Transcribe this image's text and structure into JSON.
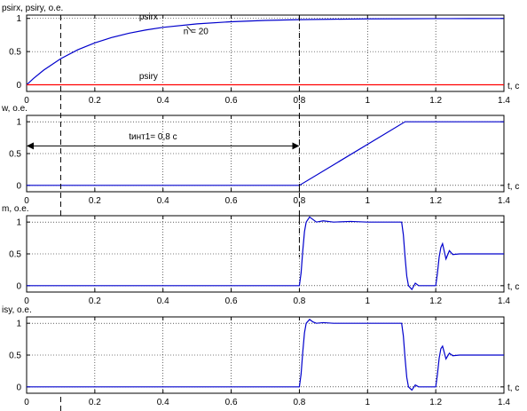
{
  "chart_data": [
    {
      "type": "line",
      "ylabel": "psirx, psiry, o.e.",
      "xlabel": "t, c",
      "xlim": [
        0,
        1.4
      ],
      "ylim": [
        -0.1,
        1.05
      ],
      "xticks": [
        0,
        0.2,
        0.4,
        0.6,
        0.8,
        1,
        1.2,
        1.4
      ],
      "xtick_labels": [
        "0",
        "0.2",
        "0.4",
        "0.6",
        "0.8",
        "1",
        "1.2",
        "1.4"
      ],
      "yticks": [
        0,
        0.5,
        1
      ],
      "ytick_labels": [
        "0",
        "0.5",
        "1"
      ],
      "grid": true,
      "series": [
        {
          "name": "psirx",
          "color": "#0000cc",
          "x": [
            0,
            0.02,
            0.05,
            0.1,
            0.15,
            0.2,
            0.25,
            0.3,
            0.35,
            0.4,
            0.5,
            0.6,
            0.7,
            0.8,
            0.9,
            1.0,
            1.1,
            1.2,
            1.3,
            1.4
          ],
          "y": [
            0,
            0.095,
            0.221,
            0.393,
            0.528,
            0.632,
            0.713,
            0.777,
            0.826,
            0.865,
            0.918,
            0.95,
            0.97,
            0.981,
            0.988,
            0.993,
            0.995,
            0.997,
            0.998,
            0.999
          ]
        },
        {
          "name": "psiry",
          "color": "#ff0000",
          "x": [
            0,
            1.4
          ],
          "y": [
            0,
            0
          ]
        }
      ],
      "annotations": [
        {
          "text": "psirx",
          "x": 0.33,
          "y": 0.98
        },
        {
          "text": "n = 20",
          "x": 0.46,
          "y": 0.76
        },
        {
          "text": "psiry",
          "x": 0.33,
          "y": 0.09
        }
      ]
    },
    {
      "type": "line",
      "ylabel": "w, o.e.",
      "xlabel": "t, c",
      "xlim": [
        0,
        1.4
      ],
      "ylim": [
        -0.1,
        1.1
      ],
      "xticks": [
        0,
        0.2,
        0.4,
        0.6,
        0.8,
        1,
        1.2,
        1.4
      ],
      "xtick_labels": [
        "0",
        "0.2",
        "0.4",
        "0.6",
        "0.8",
        "1",
        "1.2",
        "1.4"
      ],
      "yticks": [
        0,
        0.5,
        1
      ],
      "ytick_labels": [
        "0",
        "0.5",
        "1"
      ],
      "grid": true,
      "series": [
        {
          "name": "w",
          "color": "#0000cc",
          "x": [
            0,
            0.8,
            1.11,
            1.4
          ],
          "y": [
            0,
            0,
            1,
            1
          ]
        }
      ],
      "annotations": [
        {
          "text": "tинт1= 0,8 с",
          "x": 0.3,
          "y": 0.72
        }
      ]
    },
    {
      "type": "line",
      "ylabel": "m, o.e.",
      "xlabel": "t, c",
      "xlim": [
        0,
        1.4
      ],
      "ylim": [
        -0.1,
        1.1
      ],
      "xticks": [
        0,
        0.2,
        0.4,
        0.6,
        0.8,
        1,
        1.2,
        1.4
      ],
      "xtick_labels": [
        "0",
        "0.2",
        "0.4",
        "0.6",
        "0.8",
        "1",
        "1.2",
        "1.4"
      ],
      "yticks": [
        0,
        0.5,
        1
      ],
      "ytick_labels": [
        "0",
        "0.5",
        "1"
      ],
      "grid": true,
      "series": [
        {
          "name": "m",
          "color": "#0000cc",
          "x": [
            0,
            0.8,
            0.805,
            0.81,
            0.815,
            0.82,
            0.83,
            0.84,
            0.85,
            0.87,
            0.9,
            0.95,
            1.0,
            1.05,
            1.1,
            1.105,
            1.11,
            1.115,
            1.12,
            1.13,
            1.14,
            1.15,
            1.17,
            1.2,
            1.205,
            1.21,
            1.215,
            1.22,
            1.23,
            1.24,
            1.25,
            1.27,
            1.3,
            1.4
          ],
          "y": [
            0,
            0,
            0.2,
            0.55,
            0.85,
            1.0,
            1.08,
            1.04,
            1.0,
            1.02,
            1.0,
            1.01,
            1.0,
            1.0,
            1.0,
            0.8,
            0.45,
            0.15,
            0.0,
            -0.06,
            0.04,
            0.0,
            0.0,
            0.0,
            0.2,
            0.45,
            0.6,
            0.66,
            0.42,
            0.55,
            0.49,
            0.5,
            0.5,
            0.5
          ]
        }
      ]
    },
    {
      "type": "line",
      "ylabel": "isy, o.e.",
      "xlabel": "t, c",
      "xlim": [
        0,
        1.4
      ],
      "ylim": [
        -0.1,
        1.1
      ],
      "xticks": [
        0,
        0.2,
        0.4,
        0.6,
        0.8,
        1,
        1.2,
        1.4
      ],
      "xtick_labels": [
        "0",
        "0.2",
        "0.4",
        "0.6",
        "0.8",
        "1",
        "1.2",
        "1.4"
      ],
      "yticks": [
        0,
        0.5,
        1
      ],
      "ytick_labels": [
        "0",
        "0.5",
        "1"
      ],
      "grid": true,
      "series": [
        {
          "name": "isy",
          "color": "#0000cc",
          "x": [
            0,
            0.8,
            0.805,
            0.81,
            0.815,
            0.82,
            0.83,
            0.84,
            0.85,
            0.87,
            0.9,
            0.95,
            1.0,
            1.05,
            1.1,
            1.105,
            1.11,
            1.115,
            1.12,
            1.13,
            1.14,
            1.15,
            1.17,
            1.2,
            1.205,
            1.21,
            1.215,
            1.22,
            1.23,
            1.24,
            1.25,
            1.27,
            1.3,
            1.4
          ],
          "y": [
            0,
            0,
            0.2,
            0.55,
            0.85,
            1.0,
            1.06,
            1.02,
            1.0,
            1.01,
            1.0,
            1.0,
            1.0,
            1.0,
            1.0,
            0.8,
            0.45,
            0.15,
            0.0,
            -0.05,
            0.03,
            0.0,
            0.0,
            0.0,
            0.2,
            0.45,
            0.6,
            0.64,
            0.44,
            0.53,
            0.49,
            0.5,
            0.5,
            0.5
          ]
        }
      ]
    }
  ],
  "markers": {
    "vertical_dashed_lines_x": [
      0.1,
      0.8
    ],
    "interval_arrow": {
      "from": 0,
      "to": 0.8,
      "y": 0.72
    }
  }
}
